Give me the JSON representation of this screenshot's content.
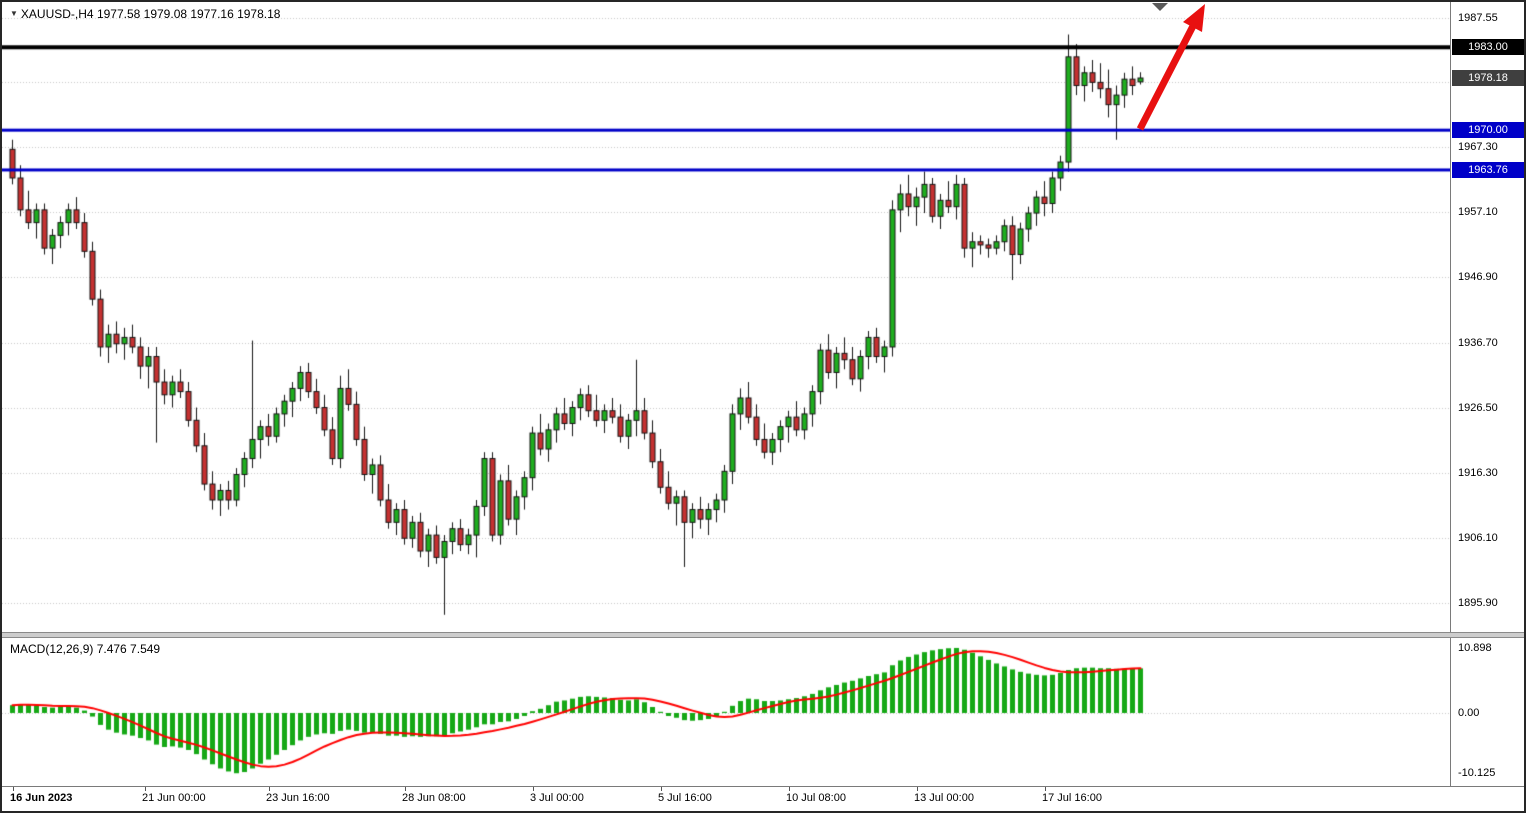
{
  "colors": {
    "bull": "#1FAE1F",
    "bear": "#C53131",
    "wick": "#141414",
    "grid": "#C6C6C6",
    "hline_black": "#000000",
    "hline_blue": "#0000C8",
    "bid_label_bg": "#3F3F3F",
    "macd_hist": "#16A816",
    "macd_signal": "#FF0000",
    "arrow": "#E81010",
    "shift_marker": "#5A5A5A",
    "axis_text": "#000000"
  },
  "header": {
    "collapse_icon": "▼",
    "symbol_period": "XAUUSD-,H4",
    "ohlc_text": "1977.58 1979.08 1977.16 1978.18"
  },
  "chart_data": [
    {
      "type": "candlestick",
      "symbol": "XAUUSD-",
      "timeframe": "H4",
      "current_ohlc": {
        "open": "1977.58",
        "high": "1979.08",
        "low": "1977.16",
        "close": "1978.18"
      },
      "ylim": [
        1891.3,
        1990.1
      ],
      "grid": "dotted-horizontal",
      "y_gridlines": [
        1987.55,
        1977.5,
        1967.3,
        1957.1,
        1946.9,
        1936.7,
        1926.5,
        1916.3,
        1906.1,
        1895.9
      ],
      "y_axis_labels": [
        {
          "text": "1987.55",
          "value": 1987.55
        },
        {
          "text": "1967.30",
          "value": 1967.3
        },
        {
          "text": "1957.10",
          "value": 1957.1
        },
        {
          "text": "1946.90",
          "value": 1946.9
        },
        {
          "text": "1936.70",
          "value": 1936.7
        },
        {
          "text": "1926.50",
          "value": 1926.5
        },
        {
          "text": "1916.30",
          "value": 1916.3
        },
        {
          "text": "1906.10",
          "value": 1906.1
        },
        {
          "text": "1895.90",
          "value": 1895.9
        }
      ],
      "price_markers": [
        {
          "text": "1983.00",
          "value": 1983.0,
          "bg": "#000000"
        },
        {
          "text": "1978.18",
          "value": 1978.18,
          "bg": "#3F3F3F"
        },
        {
          "text": "1970.00",
          "value": 1970.0,
          "bg": "#0000C8"
        },
        {
          "text": "1963.76",
          "value": 1963.76,
          "bg": "#0000C8"
        }
      ],
      "hlines": [
        {
          "value": 1983.0,
          "color": "#000000",
          "thickness": 4
        },
        {
          "value": 1970.0,
          "color": "#0000C8",
          "thickness": 3
        },
        {
          "value": 1963.76,
          "color": "#0000C8",
          "thickness": 3
        }
      ],
      "annotations": [
        {
          "type": "arrow",
          "direction": "up-right",
          "color": "#E81010",
          "near_value": 1970.0,
          "note": "bullish breakout arrow at right edge"
        },
        {
          "type": "shift-marker",
          "shape": "down-triangle",
          "color": "#5A5A5A",
          "position": "top"
        }
      ],
      "x_axis_labels": [
        {
          "text": "16 Jun 2023",
          "index": 0,
          "bold": true
        },
        {
          "text": "21 Jun 00:00",
          "index": 16.5,
          "bold": false
        },
        {
          "text": "23 Jun 16:00",
          "index": 32,
          "bold": false
        },
        {
          "text": "28 Jun 08:00",
          "index": 49,
          "bold": false
        },
        {
          "text": "3 Jul 00:00",
          "index": 65,
          "bold": false
        },
        {
          "text": "5 Jul 16:00",
          "index": 81,
          "bold": false
        },
        {
          "text": "10 Jul 08:00",
          "index": 97,
          "bold": false
        },
        {
          "text": "13 Jul 00:00",
          "index": 113,
          "bold": false
        },
        {
          "text": "17 Jul 16:00",
          "index": 129,
          "bold": false
        }
      ],
      "candles": [
        [
          1967.0,
          1968.5,
          1961.5,
          1962.5
        ],
        [
          1962.5,
          1964.5,
          1956.5,
          1957.5
        ],
        [
          1957.5,
          1960.5,
          1954.5,
          1955.5
        ],
        [
          1955.5,
          1958.5,
          1953.0,
          1957.5
        ],
        [
          1957.5,
          1958.5,
          1950.5,
          1951.5
        ],
        [
          1951.5,
          1954.5,
          1949.0,
          1953.5
        ],
        [
          1953.5,
          1956.5,
          1951.5,
          1955.5
        ],
        [
          1955.5,
          1958.5,
          1953.5,
          1957.5
        ],
        [
          1957.5,
          1959.5,
          1954.5,
          1955.5
        ],
        [
          1955.5,
          1957.0,
          1950.0,
          1951.0
        ],
        [
          1951.0,
          1952.5,
          1942.5,
          1943.5
        ],
        [
          1943.5,
          1945.0,
          1934.5,
          1936.0
        ],
        [
          1936.0,
          1939.5,
          1933.5,
          1938.0
        ],
        [
          1938.0,
          1940.0,
          1935.0,
          1936.5
        ],
        [
          1936.5,
          1939.0,
          1934.0,
          1937.5
        ],
        [
          1937.5,
          1939.5,
          1935.0,
          1936.0
        ],
        [
          1936.0,
          1937.5,
          1931.0,
          1933.0
        ],
        [
          1933.0,
          1936.0,
          1929.5,
          1934.5
        ],
        [
          1934.5,
          1936.0,
          1921.0,
          1930.5
        ],
        [
          1930.5,
          1932.5,
          1927.0,
          1928.5
        ],
        [
          1928.5,
          1931.5,
          1926.5,
          1930.5
        ],
        [
          1930.5,
          1932.5,
          1928.0,
          1929.0
        ],
        [
          1929.0,
          1930.5,
          1923.5,
          1924.5
        ],
        [
          1924.5,
          1926.5,
          1919.5,
          1920.5
        ],
        [
          1920.5,
          1922.5,
          1913.5,
          1914.5
        ],
        [
          1914.5,
          1916.5,
          1910.5,
          1912.0
        ],
        [
          1912.0,
          1914.5,
          1909.5,
          1913.5
        ],
        [
          1913.5,
          1915.0,
          1910.5,
          1912.0
        ],
        [
          1912.0,
          1917.0,
          1911.0,
          1916.0
        ],
        [
          1916.0,
          1919.5,
          1914.0,
          1918.5
        ],
        [
          1918.5,
          1937.0,
          1917.0,
          1921.5
        ],
        [
          1921.5,
          1924.5,
          1918.5,
          1923.5
        ],
        [
          1923.5,
          1925.5,
          1920.5,
          1922.0
        ],
        [
          1922.0,
          1926.5,
          1921.0,
          1925.5
        ],
        [
          1925.5,
          1928.5,
          1923.5,
          1927.5
        ],
        [
          1927.5,
          1930.5,
          1925.0,
          1929.5
        ],
        [
          1929.5,
          1933.0,
          1927.5,
          1932.0
        ],
        [
          1932.0,
          1933.5,
          1928.0,
          1929.0
        ],
        [
          1929.0,
          1931.0,
          1925.5,
          1926.5
        ],
        [
          1926.5,
          1928.5,
          1922.0,
          1923.0
        ],
        [
          1923.0,
          1925.0,
          1917.5,
          1918.5
        ],
        [
          1918.5,
          1931.5,
          1917.0,
          1929.5
        ],
        [
          1929.5,
          1932.5,
          1926.0,
          1927.0
        ],
        [
          1927.0,
          1929.0,
          1920.5,
          1921.5
        ],
        [
          1921.5,
          1923.5,
          1915.0,
          1916.0
        ],
        [
          1916.0,
          1918.5,
          1913.0,
          1917.5
        ],
        [
          1917.5,
          1919.0,
          1911.0,
          1912.0
        ],
        [
          1912.0,
          1914.5,
          1907.5,
          1908.5
        ],
        [
          1908.5,
          1911.5,
          1906.5,
          1910.5
        ],
        [
          1910.5,
          1912.0,
          1905.0,
          1906.0
        ],
        [
          1906.0,
          1909.5,
          1904.5,
          1908.5
        ],
        [
          1908.5,
          1910.0,
          1903.0,
          1904.0
        ],
        [
          1904.0,
          1907.5,
          1901.5,
          1906.5
        ],
        [
          1906.5,
          1908.0,
          1902.0,
          1903.0
        ],
        [
          1903.0,
          1906.5,
          1894.0,
          1905.5
        ],
        [
          1905.5,
          1908.5,
          1903.5,
          1907.5
        ],
        [
          1907.5,
          1909.0,
          1904.0,
          1905.0
        ],
        [
          1905.0,
          1907.5,
          1903.5,
          1906.5
        ],
        [
          1906.5,
          1912.0,
          1903.0,
          1911.0
        ],
        [
          1911.0,
          1919.5,
          1909.5,
          1918.5
        ],
        [
          1918.5,
          1919.5,
          1905.5,
          1906.5
        ],
        [
          1906.5,
          1916.0,
          1905.0,
          1915.0
        ],
        [
          1915.0,
          1917.5,
          1908.0,
          1909.0
        ],
        [
          1909.0,
          1913.5,
          1906.5,
          1912.5
        ],
        [
          1912.5,
          1916.5,
          1910.5,
          1915.5
        ],
        [
          1915.5,
          1923.5,
          1913.5,
          1922.5
        ],
        [
          1922.5,
          1925.5,
          1919.0,
          1920.0
        ],
        [
          1920.0,
          1924.0,
          1918.0,
          1923.0
        ],
        [
          1923.0,
          1926.5,
          1921.0,
          1925.5
        ],
        [
          1925.5,
          1928.0,
          1923.0,
          1924.0
        ],
        [
          1924.0,
          1927.5,
          1922.0,
          1926.5
        ],
        [
          1926.5,
          1929.5,
          1924.5,
          1928.5
        ],
        [
          1928.5,
          1930.0,
          1925.0,
          1926.0
        ],
        [
          1926.0,
          1928.5,
          1923.5,
          1924.5
        ],
        [
          1924.5,
          1927.0,
          1922.5,
          1926.0
        ],
        [
          1926.0,
          1928.0,
          1924.0,
          1925.0
        ],
        [
          1925.0,
          1927.0,
          1921.0,
          1922.0
        ],
        [
          1922.0,
          1925.5,
          1920.0,
          1924.5
        ],
        [
          1924.5,
          1934.0,
          1922.0,
          1926.0
        ],
        [
          1926.0,
          1928.0,
          1921.5,
          1922.5
        ],
        [
          1922.5,
          1924.5,
          1917.0,
          1918.0
        ],
        [
          1918.0,
          1920.0,
          1913.0,
          1914.0
        ],
        [
          1914.0,
          1916.5,
          1910.5,
          1911.5
        ],
        [
          1911.5,
          1913.5,
          1908.0,
          1912.5
        ],
        [
          1912.5,
          1913.5,
          1901.5,
          1908.5
        ],
        [
          1908.5,
          1911.5,
          1906.0,
          1910.5
        ],
        [
          1910.5,
          1912.5,
          1907.5,
          1909.0
        ],
        [
          1909.0,
          1911.5,
          1906.5,
          1910.5
        ],
        [
          1910.5,
          1913.0,
          1908.5,
          1912.0
        ],
        [
          1912.0,
          1917.5,
          1910.0,
          1916.5
        ],
        [
          1916.5,
          1927.0,
          1914.5,
          1925.5
        ],
        [
          1925.5,
          1929.5,
          1923.0,
          1928.0
        ],
        [
          1928.0,
          1930.5,
          1924.0,
          1925.0
        ],
        [
          1925.0,
          1927.0,
          1920.5,
          1921.5
        ],
        [
          1921.5,
          1924.0,
          1918.5,
          1919.5
        ],
        [
          1919.5,
          1922.5,
          1917.5,
          1921.5
        ],
        [
          1921.5,
          1924.5,
          1919.5,
          1923.5
        ],
        [
          1923.5,
          1926.0,
          1921.0,
          1925.0
        ],
        [
          1925.0,
          1927.5,
          1922.0,
          1923.0
        ],
        [
          1923.0,
          1926.5,
          1921.5,
          1925.5
        ],
        [
          1925.5,
          1930.0,
          1923.5,
          1929.0
        ],
        [
          1929.0,
          1936.5,
          1927.0,
          1935.5
        ],
        [
          1935.5,
          1938.0,
          1931.0,
          1932.0
        ],
        [
          1932.0,
          1936.0,
          1929.5,
          1935.0
        ],
        [
          1935.0,
          1937.5,
          1932.5,
          1934.0
        ],
        [
          1934.0,
          1936.0,
          1930.0,
          1931.0
        ],
        [
          1931.0,
          1935.5,
          1929.0,
          1934.5
        ],
        [
          1934.5,
          1938.5,
          1932.5,
          1937.5
        ],
        [
          1937.5,
          1939.0,
          1933.5,
          1934.5
        ],
        [
          1934.5,
          1937.0,
          1932.0,
          1936.0
        ],
        [
          1936.0,
          1959.0,
          1934.5,
          1957.5
        ],
        [
          1957.5,
          1961.5,
          1954.0,
          1960.0
        ],
        [
          1960.0,
          1963.0,
          1956.5,
          1958.0
        ],
        [
          1958.0,
          1961.0,
          1955.0,
          1959.5
        ],
        [
          1959.5,
          1963.5,
          1957.0,
          1961.5
        ],
        [
          1961.5,
          1962.5,
          1955.5,
          1956.5
        ],
        [
          1956.5,
          1960.0,
          1954.5,
          1959.0
        ],
        [
          1959.0,
          1962.0,
          1957.0,
          1958.0
        ],
        [
          1958.0,
          1963.0,
          1956.0,
          1961.5
        ],
        [
          1961.5,
          1962.5,
          1950.0,
          1951.5
        ],
        [
          1951.5,
          1954.0,
          1948.5,
          1952.5
        ],
        [
          1952.5,
          1953.5,
          1950.5,
          1952.0
        ],
        [
          1952.0,
          1953.0,
          1950.0,
          1951.5
        ],
        [
          1951.5,
          1953.5,
          1950.5,
          1952.5
        ],
        [
          1952.5,
          1956.0,
          1951.0,
          1955.0
        ],
        [
          1955.0,
          1956.5,
          1946.5,
          1950.5
        ],
        [
          1950.5,
          1955.5,
          1949.0,
          1954.5
        ],
        [
          1954.5,
          1958.0,
          1952.5,
          1957.0
        ],
        [
          1957.0,
          1960.5,
          1955.0,
          1959.5
        ],
        [
          1959.5,
          1962.0,
          1956.5,
          1958.5
        ],
        [
          1958.5,
          1963.5,
          1957.0,
          1962.5
        ],
        [
          1962.5,
          1966.0,
          1960.5,
          1965.0
        ],
        [
          1965.0,
          1985.0,
          1963.5,
          1981.5
        ],
        [
          1981.5,
          1983.5,
          1975.5,
          1977.0
        ],
        [
          1977.0,
          1980.0,
          1974.5,
          1979.0
        ],
        [
          1979.0,
          1981.0,
          1976.0,
          1977.5
        ],
        [
          1977.5,
          1980.5,
          1975.0,
          1976.5
        ],
        [
          1976.5,
          1979.5,
          1972.0,
          1974.0
        ],
        [
          1974.0,
          1977.0,
          1968.5,
          1975.5
        ],
        [
          1975.5,
          1979.0,
          1973.5,
          1978.0
        ],
        [
          1978.0,
          1980.0,
          1975.5,
          1977.0
        ],
        [
          1977.58,
          1979.08,
          1977.16,
          1978.18
        ]
      ]
    },
    {
      "type": "bar",
      "name": "MACD(12,26,9)",
      "display_label": "MACD(12,26,9) 7.476 7.549",
      "macd_value": "7.476",
      "signal_value": "7.549",
      "ylim": [
        -12.24,
        12.57
      ],
      "y_gridlines": [
        0
      ],
      "y_axis_labels": [
        {
          "text": "10.898",
          "value": 10.898
        },
        {
          "text": "0.00",
          "value": 0
        },
        {
          "text": "-10.125",
          "value": -10.125
        }
      ],
      "signal_method": "sma9-of-histogram",
      "histogram": [
        1.3,
        1.5,
        1.4,
        1.2,
        1.0,
        0.9,
        1.0,
        1.1,
        0.9,
        0.4,
        -0.6,
        -2.0,
        -2.8,
        -3.3,
        -3.6,
        -3.8,
        -4.2,
        -4.6,
        -5.3,
        -5.7,
        -5.6,
        -5.8,
        -6.2,
        -6.9,
        -7.8,
        -8.6,
        -9.3,
        -9.8,
        -10.1,
        -9.9,
        -9.3,
        -8.5,
        -7.8,
        -7.0,
        -6.2,
        -5.4,
        -4.6,
        -4.0,
        -3.6,
        -3.4,
        -3.5,
        -3.0,
        -2.8,
        -3.0,
        -3.3,
        -3.3,
        -3.5,
        -3.8,
        -3.8,
        -4.0,
        -3.9,
        -4.0,
        -3.9,
        -3.9,
        -3.8,
        -3.4,
        -3.1,
        -2.8,
        -2.4,
        -1.9,
        -1.9,
        -1.5,
        -1.4,
        -1.0,
        -0.5,
        0.3,
        0.7,
        1.3,
        1.9,
        2.1,
        2.4,
        2.7,
        2.8,
        2.7,
        2.6,
        2.5,
        2.2,
        2.1,
        2.3,
        1.8,
        1.0,
        0.2,
        -0.5,
        -0.8,
        -1.2,
        -1.3,
        -1.2,
        -1.0,
        -0.6,
        0.2,
        1.2,
        2.0,
        2.4,
        2.3,
        2.0,
        2.0,
        2.1,
        2.3,
        2.5,
        2.8,
        3.2,
        3.8,
        4.3,
        4.7,
        5.1,
        5.4,
        5.8,
        6.2,
        6.5,
        6.8,
        8.0,
        8.8,
        9.4,
        9.8,
        10.2,
        10.5,
        10.7,
        10.85,
        10.9,
        10.6,
        10.1,
        9.5,
        8.9,
        8.3,
        7.8,
        7.3,
        6.9,
        6.6,
        6.4,
        6.3,
        6.4,
        6.7,
        7.2,
        7.5,
        7.6,
        7.6,
        7.5,
        7.5,
        7.4,
        7.4,
        7.45,
        7.476
      ]
    }
  ]
}
